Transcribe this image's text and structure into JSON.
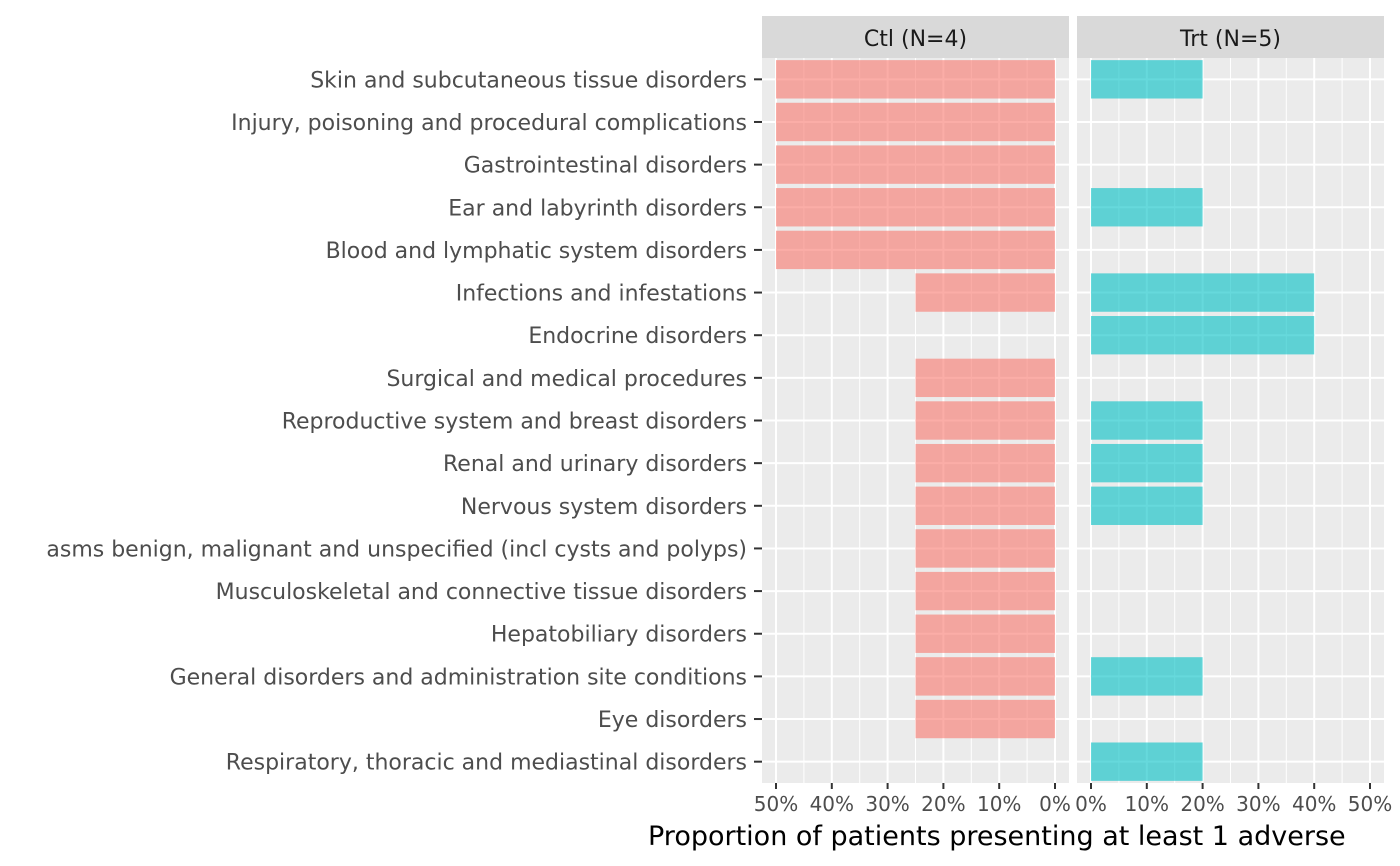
{
  "chart_data": {
    "type": "bar",
    "orientation": "horizontal",
    "xlabel": "Proportion of patients presenting at least 1 adverse",
    "ylabel": "",
    "xlim": [
      0,
      0.5
    ],
    "x_ticks": [
      "50%",
      "40%",
      "30%",
      "20%",
      "10%",
      "0%",
      "0%",
      "10%",
      "20%",
      "30%",
      "40%",
      "50%"
    ],
    "grid": true,
    "legend": "none",
    "categories": [
      "Skin and subcutaneous tissue disorders",
      "Injury, poisoning and procedural complications",
      "Gastrointestinal disorders",
      "Ear and labyrinth disorders",
      "Blood and lymphatic system disorders",
      "Infections and infestations",
      "Endocrine disorders",
      "Surgical and medical procedures",
      "Reproductive system and breast disorders",
      "Renal and urinary disorders",
      "Nervous system disorders",
      "asms benign, malignant and unspecified (incl cysts and polyps)",
      "Musculoskeletal and connective tissue disorders",
      "Hepatobiliary disorders",
      "General disorders and administration site conditions",
      "Eye disorders",
      "Respiratory, thoracic and mediastinal disorders"
    ],
    "panels": [
      {
        "name": "Ctl (N=4)",
        "direction": "reversed",
        "color": "#F8766D",
        "values": [
          0.5,
          0.5,
          0.5,
          0.5,
          0.5,
          0.25,
          0,
          0.25,
          0.25,
          0.25,
          0.25,
          0.25,
          0.25,
          0.25,
          0.25,
          0.25,
          0
        ]
      },
      {
        "name": "Trt (N=5)",
        "direction": "normal",
        "color": "#00BFC4",
        "values": [
          0.2,
          0,
          0,
          0.2,
          0,
          0.4,
          0.4,
          0,
          0.2,
          0.2,
          0.2,
          0,
          0,
          0,
          0.2,
          0,
          0.2
        ]
      }
    ]
  }
}
